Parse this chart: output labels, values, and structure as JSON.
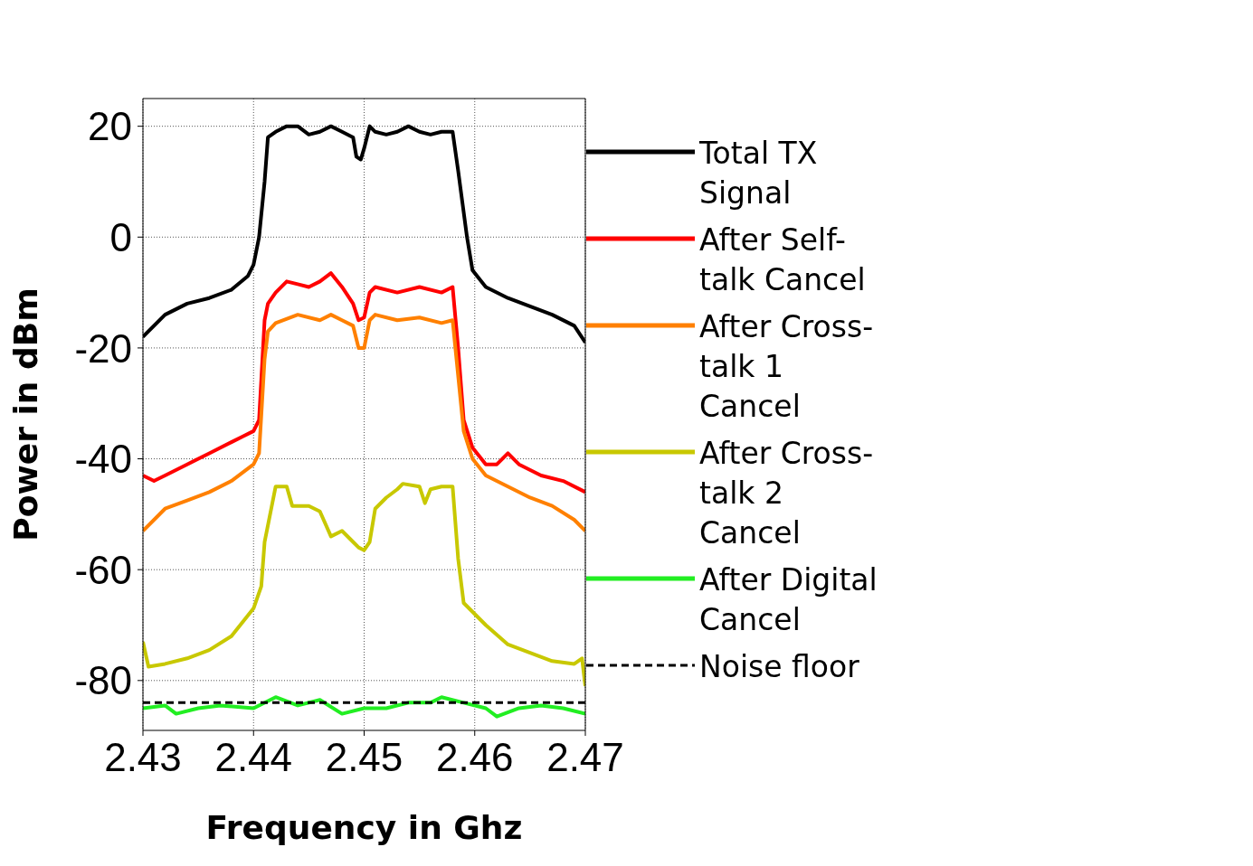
{
  "chart_data": {
    "type": "line",
    "xlabel": "Frequency in Ghz",
    "ylabel": "Power in dBm",
    "xlim": [
      2.43,
      2.47
    ],
    "xticks": [
      2.43,
      2.44,
      2.45,
      2.46,
      2.47
    ],
    "ylim": [
      -89,
      25
    ],
    "yticks": [
      -80,
      -60,
      -40,
      -20,
      0,
      20
    ],
    "grid": true,
    "legend": "right",
    "marker": "none",
    "series": [
      {
        "name": "Total TX Signal",
        "color": "#000000",
        "x": [
          2.43,
          2.432,
          2.434,
          2.436,
          2.438,
          2.4395,
          2.44,
          2.4405,
          2.441,
          2.4413,
          2.442,
          2.443,
          2.444,
          2.445,
          2.446,
          2.447,
          2.448,
          2.449,
          2.4493,
          2.4497,
          2.45,
          2.4505,
          2.451,
          2.452,
          2.453,
          2.454,
          2.455,
          2.456,
          2.457,
          2.458,
          2.4585,
          2.4593,
          2.4598,
          2.461,
          2.463,
          2.465,
          2.467,
          2.469,
          2.47
        ],
        "values": [
          -18,
          -14,
          -12,
          -11,
          -9.5,
          -7,
          -5,
          0,
          10,
          18,
          19,
          20,
          20,
          18.5,
          19,
          20,
          19,
          18,
          14.5,
          14,
          16,
          20,
          19,
          18.5,
          19,
          20,
          19,
          18.5,
          19,
          19,
          12,
          0,
          -6,
          -9,
          -11,
          -12.5,
          -14,
          -16,
          -19
        ]
      },
      {
        "name": "After Self-talk Cancel",
        "color": "#ff0000",
        "x": [
          2.43,
          2.431,
          2.432,
          2.434,
          2.436,
          2.438,
          2.439,
          2.44,
          2.4405,
          2.441,
          2.4413,
          2.442,
          2.443,
          2.444,
          2.445,
          2.446,
          2.447,
          2.448,
          2.449,
          2.4495,
          2.45,
          2.4505,
          2.451,
          2.453,
          2.455,
          2.457,
          2.458,
          2.4585,
          2.459,
          2.4598,
          2.461,
          2.462,
          2.463,
          2.464,
          2.466,
          2.468,
          2.47
        ],
        "values": [
          -43,
          -44,
          -43,
          -41,
          -39,
          -37,
          -36,
          -35,
          -33,
          -15,
          -12,
          -10,
          -8,
          -8.5,
          -9,
          -8,
          -6.5,
          -9,
          -12,
          -15,
          -14.5,
          -10,
          -9,
          -10,
          -9,
          -10,
          -9,
          -20,
          -33,
          -38,
          -41,
          -41,
          -39,
          -41,
          -43,
          -44,
          -46
        ]
      },
      {
        "name": "After Cross-talk 1 Cancel",
        "color": "#ff8000",
        "x": [
          2.43,
          2.432,
          2.434,
          2.436,
          2.438,
          2.44,
          2.4405,
          2.441,
          2.4413,
          2.442,
          2.444,
          2.446,
          2.447,
          2.448,
          2.449,
          2.4495,
          2.45,
          2.4505,
          2.451,
          2.453,
          2.455,
          2.457,
          2.458,
          2.4585,
          2.459,
          2.4598,
          2.461,
          2.463,
          2.465,
          2.467,
          2.469,
          2.47
        ],
        "values": [
          -53,
          -49,
          -47.5,
          -46,
          -44,
          -41,
          -39,
          -22,
          -17,
          -15.5,
          -14,
          -15,
          -14,
          -15,
          -16,
          -20,
          -20,
          -15,
          -14,
          -15,
          -14.5,
          -15.5,
          -15,
          -25,
          -35,
          -40,
          -43,
          -45,
          -47,
          -48.5,
          -51,
          -53
        ]
      },
      {
        "name": "After Cross-talk 2 Cancel",
        "color": "#c8c800",
        "x": [
          2.43,
          2.4305,
          2.432,
          2.434,
          2.436,
          2.438,
          2.44,
          2.4407,
          2.441,
          2.442,
          2.443,
          2.4435,
          2.445,
          2.446,
          2.447,
          2.448,
          2.449,
          2.4495,
          2.45,
          2.4505,
          2.451,
          2.452,
          2.453,
          2.4535,
          2.455,
          2.4555,
          2.456,
          2.457,
          2.458,
          2.4585,
          2.459,
          2.461,
          2.463,
          2.465,
          2.467,
          2.469,
          2.4697,
          2.47
        ],
        "values": [
          -73,
          -77.5,
          -77,
          -76,
          -74.5,
          -72,
          -67,
          -63,
          -55,
          -45,
          -45,
          -48.5,
          -48.5,
          -49.5,
          -54,
          -53,
          -55,
          -56,
          -56.5,
          -55,
          -49,
          -47,
          -45.5,
          -44.5,
          -45,
          -48,
          -45.5,
          -45,
          -45,
          -58,
          -66,
          -70,
          -73.5,
          -75,
          -76.5,
          -77,
          -76,
          -81
        ]
      },
      {
        "name": "After Digital Cancel",
        "color": "#22ee22",
        "x": [
          2.43,
          2.432,
          2.433,
          2.435,
          2.437,
          2.44,
          2.442,
          2.444,
          2.446,
          2.448,
          2.45,
          2.452,
          2.454,
          2.456,
          2.457,
          2.459,
          2.461,
          2.462,
          2.464,
          2.466,
          2.468,
          2.47
        ],
        "values": [
          -85,
          -84.5,
          -86,
          -85,
          -84.5,
          -85,
          -83,
          -84.5,
          -83.5,
          -86,
          -85,
          -85,
          -84,
          -84,
          -83,
          -84,
          -85,
          -86.5,
          -85,
          -84.5,
          -85,
          -86
        ]
      },
      {
        "name": "Noise floor",
        "color": "#000000",
        "line_style": "dashed",
        "x": [
          2.43,
          2.47
        ],
        "values": [
          -84,
          -84
        ]
      }
    ]
  }
}
